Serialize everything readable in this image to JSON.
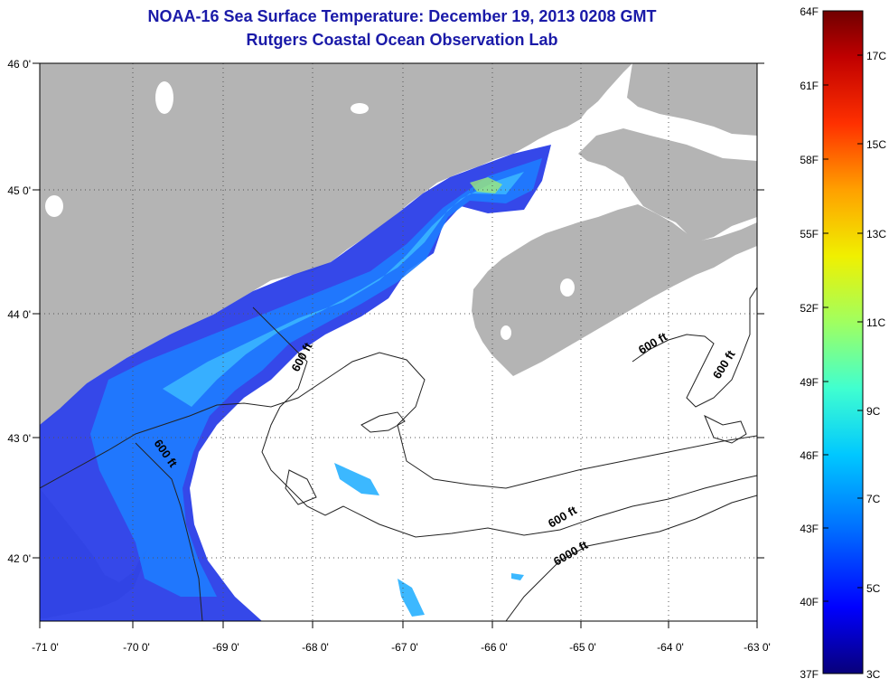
{
  "title": {
    "line1": "NOAA-16 Sea Surface Temperature:  December 19, 2013 0208 GMT",
    "line2": "Rutgers Coastal Ocean Observation Lab"
  },
  "map": {
    "lat_labels": [
      "46 0'",
      "45 0'",
      "44 0'",
      "43 0'",
      "42 0'"
    ],
    "lon_labels": [
      "-71 0'",
      "-70 0'",
      "-69 0'",
      "-68 0'",
      "-67 0'",
      "-66 0'",
      "-65 0'",
      "-64 0'",
      "-63 0'"
    ],
    "contour_labels": [
      "600 ft",
      "600 ft",
      "600 ft",
      "600 ft",
      "600 ft",
      "6000 ft"
    ],
    "colors": {
      "land": "#b4b4b4",
      "ocean": "#ffffff",
      "contour": "#222222",
      "grid": "#555555",
      "sst_cold": "#1428e6",
      "sst_mid": "#1e78ff",
      "sst_warm": "#3cc8ff",
      "sst_warmest": "#9ee87a"
    }
  },
  "colorbar": {
    "f_labels": [
      "64F",
      "61F",
      "58F",
      "55F",
      "52F",
      "49F",
      "46F",
      "43F",
      "40F",
      "37F"
    ],
    "c_labels": [
      "17C",
      "15C",
      "13C",
      "11C",
      "9C",
      "7C",
      "5C",
      "3C"
    ],
    "color_stops": [
      "#08007a",
      "#0000ff",
      "#0070ff",
      "#00c8ff",
      "#40ffd0",
      "#a0ff60",
      "#f0f000",
      "#ffa000",
      "#ff3000",
      "#c00000",
      "#700000"
    ]
  }
}
